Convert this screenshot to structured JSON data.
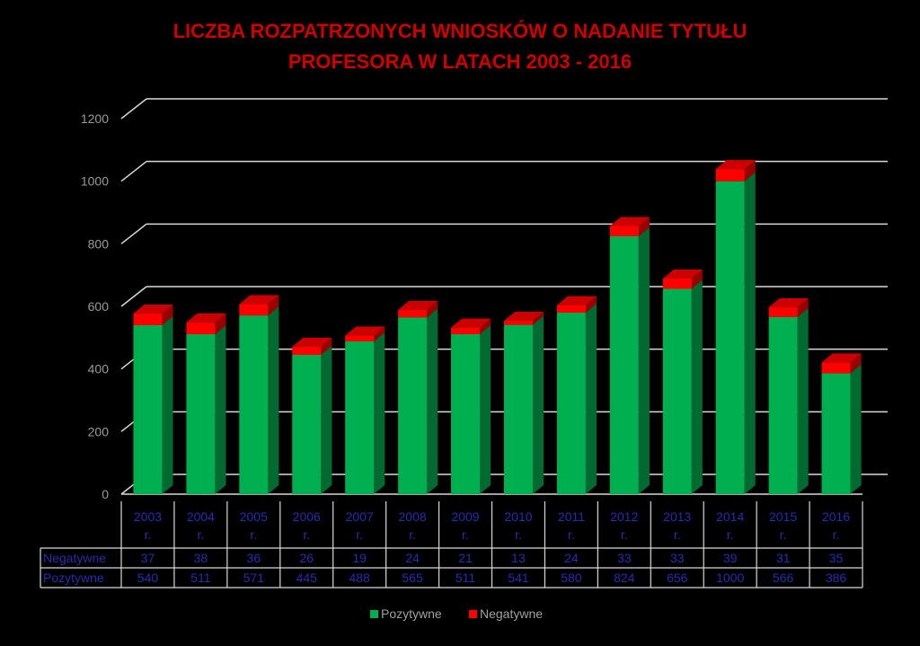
{
  "chart_data": {
    "type": "bar",
    "stacked": true,
    "title_line1": "LICZBA ROZPATRZONYCH WNIOSKÓW O NADANIE TYTUŁU",
    "title_line2": "PROFESORA W LATACH 2003 - 2016",
    "categories": [
      "2003 r.",
      "2004 r.",
      "2005 r.",
      "2006 r.",
      "2007 r.",
      "2008 r.",
      "2009 r.",
      "2010 r.",
      "2011 r.",
      "2012 r.",
      "2013 r.",
      "2014 r.",
      "2015 r.",
      "2016 r."
    ],
    "category_lines": [
      [
        "2003",
        "r."
      ],
      [
        "2004",
        "r."
      ],
      [
        "2005",
        "r."
      ],
      [
        "2006",
        "r."
      ],
      [
        "2007",
        "r."
      ],
      [
        "2008",
        "r."
      ],
      [
        "2009",
        "r."
      ],
      [
        "2010",
        "r."
      ],
      [
        "2011",
        "r."
      ],
      [
        "2012",
        "r."
      ],
      [
        "2013",
        "r."
      ],
      [
        "2014",
        "r."
      ],
      [
        "2015",
        "r."
      ],
      [
        "2016",
        "r."
      ]
    ],
    "series": [
      {
        "name": "Pozytywne",
        "color": "#00b050",
        "values": [
          540,
          511,
          571,
          445,
          488,
          565,
          511,
          541,
          580,
          824,
          656,
          1000,
          566,
          386
        ]
      },
      {
        "name": "Negatywne",
        "color": "#ff0000",
        "values": [
          37,
          38,
          36,
          26,
          19,
          24,
          21,
          13,
          24,
          33,
          33,
          39,
          31,
          35
        ]
      }
    ],
    "ylim": [
      0,
      1200
    ],
    "yticks": [
      0,
      200,
      400,
      600,
      800,
      1000,
      1200
    ],
    "grid": true,
    "legend": "bottom",
    "data_table": {
      "rows": [
        {
          "label": "Negatywne",
          "values": [
            37,
            38,
            36,
            26,
            19,
            24,
            21,
            13,
            24,
            33,
            33,
            39,
            31,
            35
          ]
        },
        {
          "label": "Pozytywne",
          "values": [
            540,
            511,
            571,
            445,
            488,
            565,
            511,
            541,
            580,
            824,
            656,
            1000,
            566,
            386
          ]
        }
      ]
    }
  }
}
